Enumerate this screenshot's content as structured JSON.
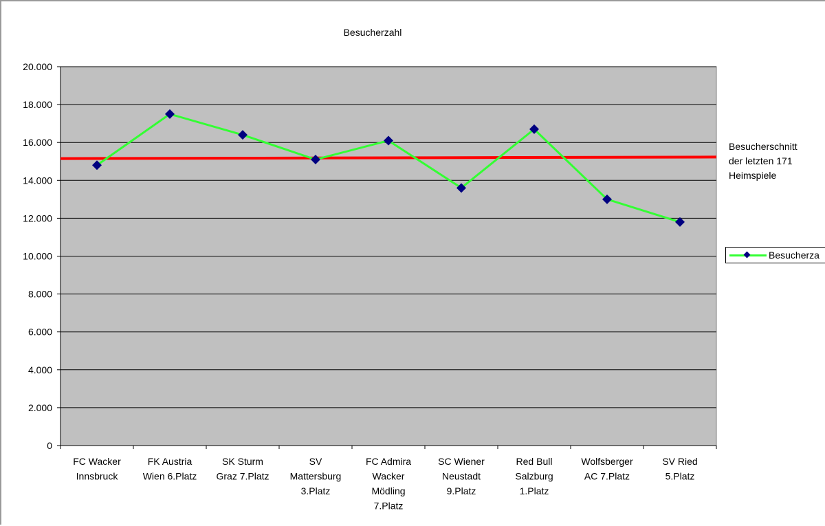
{
  "chart_data": {
    "type": "line",
    "title": "Besucherzahl",
    "categories": [
      "FC Wacker Innsbruck",
      "FK Austria Wien 6.Platz",
      "SK Sturm Graz 7.Platz",
      "SV Mattersburg 3.Platz",
      "FC Admira Wacker Mödling 7.Platz",
      "SC Wiener Neustadt 9.Platz",
      "Red Bull Salzburg 1.Platz",
      "Wolfsberger AC 7.Platz",
      "SV Ried 5.Platz"
    ],
    "category_lines": [
      [
        "FC Wacker",
        "Innsbruck"
      ],
      [
        "FK Austria",
        "Wien 6.Platz"
      ],
      [
        "SK Sturm",
        "Graz 7.Platz"
      ],
      [
        "SV",
        "Mattersburg",
        "3.Platz"
      ],
      [
        "FC Admira",
        "Wacker",
        "Mödling",
        "7.Platz"
      ],
      [
        "SC Wiener",
        "Neustadt",
        "9.Platz"
      ],
      [
        "Red Bull",
        "Salzburg",
        "1.Platz"
      ],
      [
        "Wolfsberger",
        "AC 7.Platz"
      ],
      [
        "SV Ried",
        "5.Platz"
      ]
    ],
    "series": [
      {
        "name": "Besucherza",
        "values": [
          14800,
          17500,
          16400,
          15100,
          16100,
          13600,
          16700,
          13000,
          11800
        ],
        "color": "#33ff33",
        "marker_color": "#000080"
      }
    ],
    "reference_line": {
      "start_value": 15150,
      "end_value": 15230,
      "color": "#ff0000",
      "label_lines": [
        "Besucherschnitt",
        "der letzten 171",
        "Heimspiele"
      ]
    },
    "ylim": [
      0,
      20000
    ],
    "y_ticks": [
      0,
      2000,
      4000,
      6000,
      8000,
      10000,
      12000,
      14000,
      16000,
      18000,
      20000
    ],
    "y_tick_labels": [
      "0",
      "2.000",
      "4.000",
      "6.000",
      "8.000",
      "10.000",
      "12.000",
      "14.000",
      "16.000",
      "18.000",
      "20.000"
    ],
    "xlabel": "",
    "ylabel": "",
    "grid": true,
    "legend_position": "right",
    "plot_background": "#c0c0c0"
  }
}
